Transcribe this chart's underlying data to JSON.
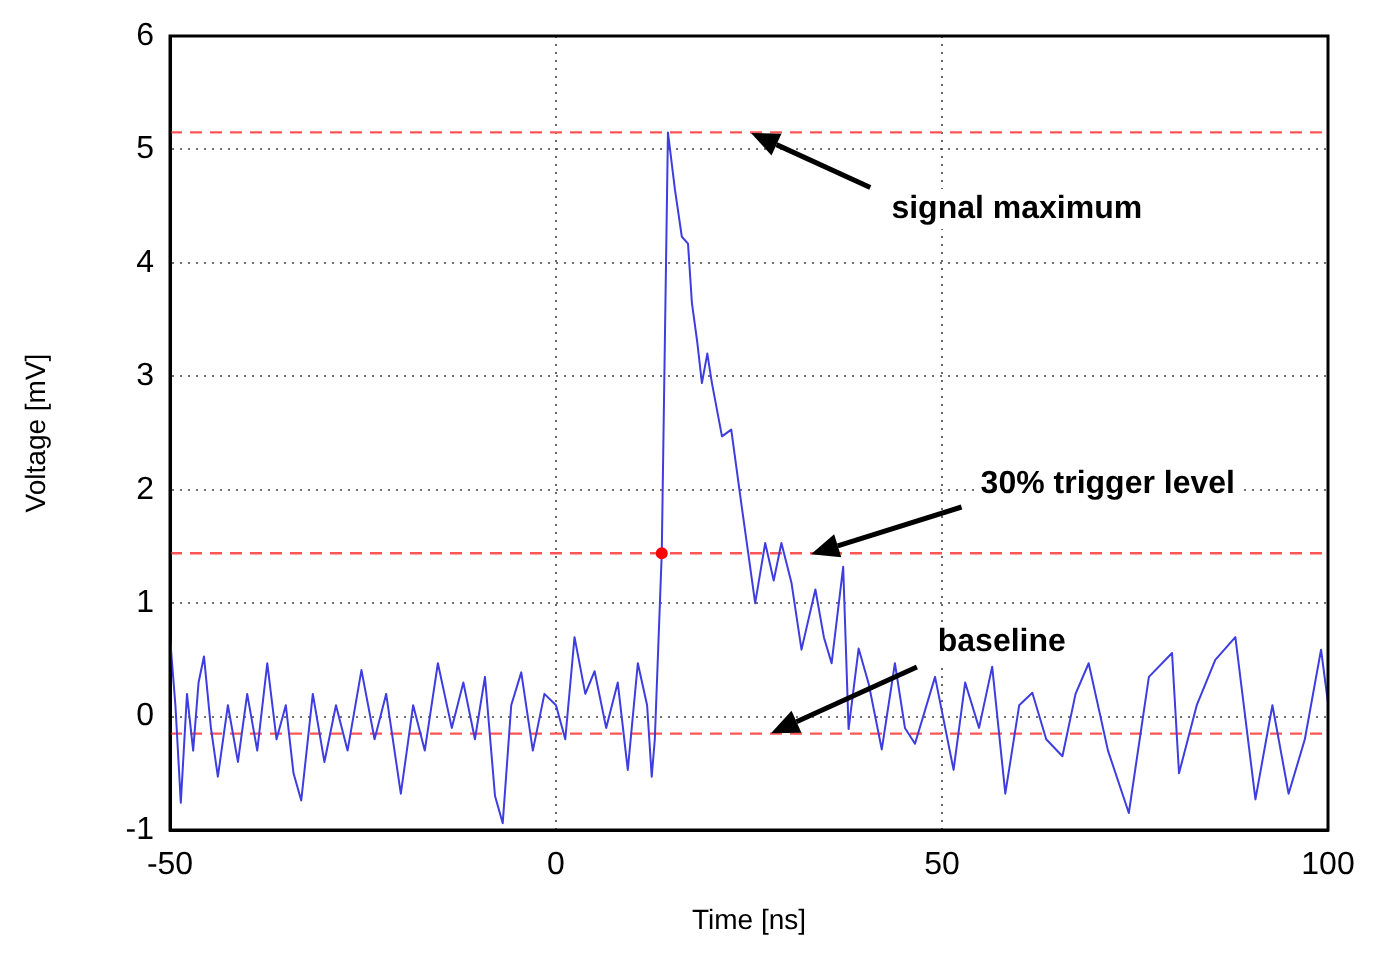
{
  "chart_data": {
    "type": "line",
    "xlabel": "Time [ns]",
    "ylabel": "Voltage [mV]",
    "xlim": [
      -50,
      100
    ],
    "xticks": [
      -50,
      0,
      50,
      100
    ],
    "ylim": [
      -1,
      6
    ],
    "yticks": [
      -1,
      0,
      1,
      2,
      3,
      4,
      5,
      6
    ],
    "grid": true,
    "legend": false,
    "marker": "none",
    "line_style": "solid",
    "series": [
      {
        "type": "line",
        "color": "#3d3de0",
        "x": [
          -50,
          -49.3,
          -48.6,
          -47.8,
          -47,
          -46.3,
          -45.6,
          -44.7,
          -43.8,
          -42.5,
          -41.2,
          -40,
          -38.7,
          -37.4,
          -36.2,
          -35,
          -34,
          -33,
          -31.5,
          -30,
          -28.5,
          -27,
          -25.2,
          -23.5,
          -22,
          -20.1,
          -18.5,
          -17,
          -15.3,
          -13.5,
          -12,
          -10.5,
          -9.2,
          -7.9,
          -6.9,
          -5.8,
          -4.5,
          -3,
          -1.5,
          0,
          1.2,
          2.4,
          3.8,
          5,
          6.5,
          8,
          9.3,
          10.6,
          11.8,
          12.4,
          12.8,
          13.7,
          14.5,
          15.4,
          16.3,
          17.1,
          17.6,
          18.3,
          18.9,
          19.6,
          20.2,
          21.5,
          22.7,
          24,
          25.8,
          27.1,
          28.2,
          29.2,
          30.5,
          31.8,
          33.6,
          34.7,
          35.7,
          37.2,
          37.9,
          39.2,
          40.5,
          42.2,
          43.9,
          45.2,
          46.5,
          49.1,
          51.5,
          53,
          54.8,
          56.5,
          58.2,
          60,
          61.7,
          63.5,
          65.6,
          67.3,
          69,
          71.5,
          74.2,
          76.8,
          79.8,
          80.7,
          83,
          85.4,
          88,
          90.6,
          92.8,
          94.9,
          97,
          99.1,
          100
        ],
        "values": [
          0.7,
          0.1,
          -0.76,
          0.2,
          -0.3,
          0.3,
          0.53,
          -0.1,
          -0.53,
          0.1,
          -0.4,
          0.2,
          -0.3,
          0.47,
          -0.2,
          0.1,
          -0.5,
          -0.74,
          0.2,
          -0.4,
          0.1,
          -0.3,
          0.41,
          -0.2,
          0.2,
          -0.68,
          0.1,
          -0.3,
          0.47,
          -0.1,
          0.3,
          -0.2,
          0.35,
          -0.7,
          -0.94,
          0.1,
          0.39,
          -0.3,
          0.2,
          0.1,
          -0.2,
          0.7,
          0.2,
          0.4,
          -0.1,
          0.3,
          -0.47,
          0.47,
          0.1,
          -0.53,
          -0.2,
          1.44,
          5.15,
          4.65,
          4.23,
          4.17,
          3.65,
          3.3,
          2.94,
          3.2,
          2.94,
          2.47,
          2.53,
          1.88,
          1.0,
          1.53,
          1.2,
          1.53,
          1.18,
          0.59,
          1.12,
          0.7,
          0.47,
          1.32,
          -0.11,
          0.6,
          0.29,
          -0.29,
          0.47,
          -0.1,
          -0.24,
          0.35,
          -0.47,
          0.3,
          -0.1,
          0.44,
          -0.68,
          0.1,
          0.21,
          -0.2,
          -0.35,
          0.2,
          0.47,
          -0.3,
          -0.85,
          0.35,
          0.56,
          -0.5,
          0.1,
          0.5,
          0.7,
          -0.73,
          0.1,
          -0.68,
          -0.2,
          0.59,
          0.12
        ]
      },
      {
        "type": "scatter",
        "color": "#ff0000",
        "x": [
          13.7
        ],
        "values": [
          1.44
        ],
        "marker": "circle"
      }
    ],
    "ref_lines": [
      {
        "axis": "y",
        "value": 5.15,
        "color": "#ff5555",
        "line_style": "dashed",
        "label": "signal maximum"
      },
      {
        "axis": "y",
        "value": 1.44,
        "color": "#ff5555",
        "line_style": "dashed",
        "label": "30% trigger level"
      },
      {
        "axis": "y",
        "value": -0.15,
        "color": "#ff5555",
        "line_style": "dashed",
        "label": "baseline"
      }
    ]
  }
}
